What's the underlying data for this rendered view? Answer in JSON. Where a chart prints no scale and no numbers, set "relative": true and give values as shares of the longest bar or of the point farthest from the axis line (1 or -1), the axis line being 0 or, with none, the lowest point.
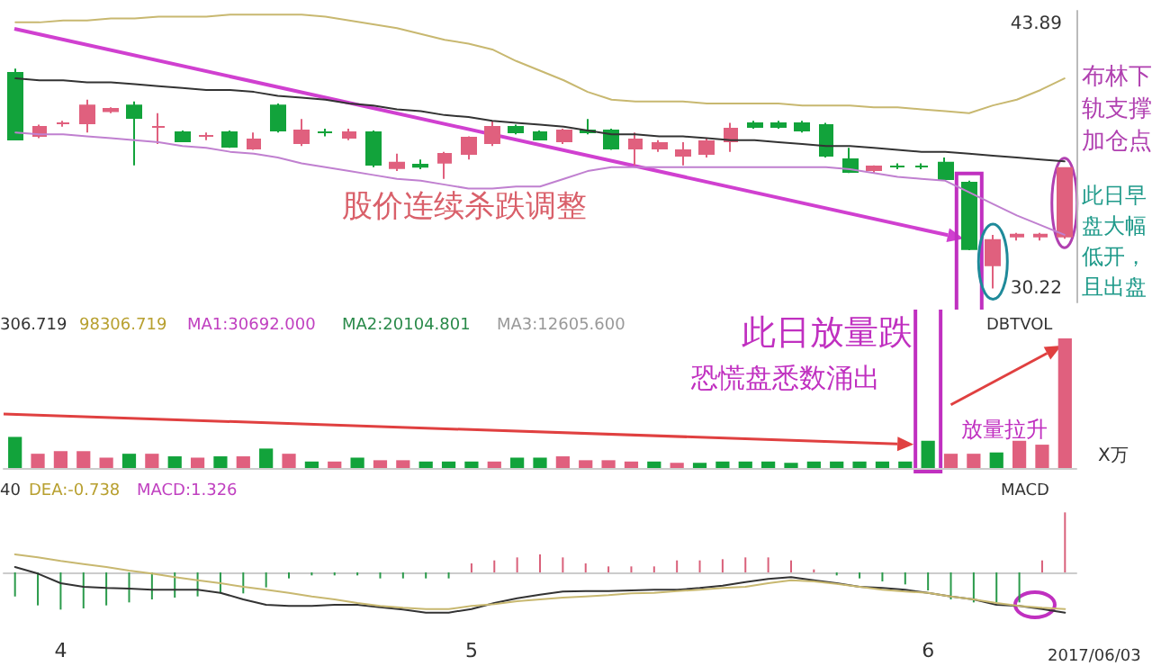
{
  "chart_data": [
    {
      "type": "candlestick",
      "tick_labels": "y",
      "ylim": [
        29.5,
        44.6
      ],
      "yticks": [
        30.22,
        43.89
      ],
      "categories": [
        null,
        null,
        null,
        null,
        null,
        null,
        null,
        null,
        null,
        null,
        null,
        null,
        null,
        null,
        null,
        null,
        null,
        null,
        null,
        null,
        null,
        null,
        null,
        null,
        null,
        null,
        null,
        null,
        null,
        null,
        null,
        null,
        null,
        null,
        null,
        null,
        null,
        null,
        null,
        null,
        null,
        null,
        null,
        null,
        null
      ],
      "ohlc": [
        [
          41.38,
          41.6,
          37.9,
          37.94
        ],
        [
          38.12,
          38.7,
          38.0,
          38.59
        ],
        [
          38.77,
          38.9,
          38.6,
          38.77
        ],
        [
          38.77,
          40.0,
          38.3,
          39.7
        ],
        [
          39.4,
          39.6,
          39.3,
          39.52
        ],
        [
          39.7,
          39.9,
          36.6,
          39.05
        ],
        [
          38.59,
          39.3,
          37.7,
          38.59
        ],
        [
          38.31,
          38.4,
          37.8,
          37.84
        ],
        [
          38.12,
          38.3,
          37.9,
          38.12
        ],
        [
          38.31,
          38.4,
          37.5,
          37.56
        ],
        [
          37.47,
          38.3,
          37.4,
          37.93
        ],
        [
          39.7,
          39.8,
          38.3,
          38.4
        ],
        [
          37.75,
          39.0,
          37.6,
          38.4
        ],
        [
          38.31,
          38.5,
          38.1,
          38.31
        ],
        [
          38.03,
          38.5,
          37.9,
          38.31
        ],
        [
          38.31,
          38.4,
          36.5,
          36.63
        ],
        [
          36.45,
          37.2,
          36.3,
          36.73
        ],
        [
          36.63,
          36.9,
          36.4,
          36.53
        ],
        [
          36.73,
          37.3,
          35.9,
          37.19
        ],
        [
          37.19,
          38.1,
          36.9,
          38.03
        ],
        [
          37.75,
          38.9,
          37.6,
          38.59
        ],
        [
          38.59,
          38.7,
          38.2,
          38.31
        ],
        [
          38.31,
          38.4,
          37.9,
          37.93
        ],
        [
          37.84,
          38.5,
          37.7,
          38.4
        ],
        [
          38.4,
          39.0,
          38.2,
          38.31
        ],
        [
          38.4,
          38.5,
          37.4,
          37.47
        ],
        [
          37.47,
          38.3,
          36.6,
          37.93
        ],
        [
          37.47,
          37.9,
          37.3,
          37.75
        ],
        [
          37.1,
          37.8,
          36.6,
          37.38
        ],
        [
          37.19,
          38.0,
          37.0,
          37.84
        ],
        [
          37.84,
          38.8,
          37.3,
          38.49
        ],
        [
          38.77,
          38.9,
          38.5,
          38.59
        ],
        [
          38.77,
          38.9,
          38.5,
          38.59
        ],
        [
          38.77,
          38.9,
          38.3,
          38.4
        ],
        [
          38.68,
          38.8,
          37.0,
          37.1
        ],
        [
          36.91,
          37.5,
          36.2,
          36.26
        ],
        [
          36.35,
          36.6,
          36.2,
          36.54
        ],
        [
          36.54,
          36.7,
          36.4,
          36.54
        ],
        [
          36.54,
          36.7,
          36.4,
          36.54
        ],
        [
          36.73,
          37.0,
          35.8,
          35.89
        ],
        [
          35.7,
          35.8,
          32.2,
          32.26
        ],
        [
          31.42,
          33.0,
          30.22,
          32.73
        ],
        [
          32.91,
          33.1,
          32.7,
          33.01
        ],
        [
          32.91,
          33.1,
          32.7,
          33.01
        ],
        [
          32.91,
          36.5,
          32.8,
          36.45
        ]
      ],
      "colors": [
        "#12a33b",
        "#e0607e",
        "#e0607e",
        "#e0607e",
        "#e0607e",
        "#12a33b",
        "#e0607e",
        "#12a33b",
        "#e0607e",
        "#12a33b",
        "#e0607e",
        "#12a33b",
        "#e0607e",
        "#12a33b",
        "#e0607e",
        "#12a33b",
        "#e0607e",
        "#12a33b",
        "#e0607e",
        "#e0607e",
        "#e0607e",
        "#12a33b",
        "#12a33b",
        "#e0607e",
        "#12a33b",
        "#12a33b",
        "#e0607e",
        "#e0607e",
        "#e0607e",
        "#e0607e",
        "#e0607e",
        "#12a33b",
        "#12a33b",
        "#12a33b",
        "#12a33b",
        "#12a33b",
        "#e0607e",
        "#12a33b",
        "#12a33b",
        "#12a33b",
        "#12a33b",
        "#e0607e",
        "#e0607e",
        "#e0607e",
        "#e0607e"
      ],
      "series": [
        {
          "type": "line",
          "color": "#333333",
          "values": [
            41.1,
            41.0,
            41.0,
            40.9,
            40.9,
            40.8,
            40.7,
            40.6,
            40.5,
            40.5,
            40.4,
            40.2,
            40.1,
            40.0,
            39.8,
            39.7,
            39.5,
            39.4,
            39.2,
            39.1,
            38.9,
            38.8,
            38.7,
            38.6,
            38.4,
            38.2,
            38.2,
            38.1,
            38.1,
            38.0,
            37.9,
            37.9,
            37.8,
            37.7,
            37.6,
            37.6,
            37.5,
            37.4,
            37.3,
            37.3,
            37.2,
            37.1,
            37.0,
            36.9,
            36.8
          ]
        },
        {
          "type": "line",
          "color": "#c8b870",
          "values": [
            44.0,
            44.0,
            44.1,
            44.1,
            44.2,
            44.2,
            44.3,
            44.3,
            44.3,
            44.4,
            44.4,
            44.4,
            44.4,
            44.3,
            44.1,
            43.9,
            43.7,
            43.4,
            43.1,
            42.9,
            42.6,
            42.0,
            41.5,
            41.0,
            40.4,
            40.0,
            39.9,
            39.9,
            39.9,
            39.8,
            39.8,
            39.8,
            39.8,
            39.7,
            39.7,
            39.7,
            39.6,
            39.6,
            39.5,
            39.4,
            39.3,
            39.7,
            40.0,
            40.5,
            41.1
          ]
        },
        {
          "type": "line",
          "color": "#c080d0",
          "values": [
            38.3,
            38.2,
            38.2,
            38.1,
            38.0,
            37.9,
            37.8,
            37.6,
            37.5,
            37.3,
            37.2,
            37.0,
            36.7,
            36.5,
            36.3,
            36.1,
            35.9,
            35.8,
            35.6,
            35.4,
            35.4,
            35.5,
            35.5,
            35.9,
            36.3,
            36.5,
            36.5,
            36.5,
            36.5,
            36.5,
            36.5,
            36.5,
            36.5,
            36.5,
            36.5,
            36.4,
            36.2,
            36.0,
            35.9,
            35.8,
            35.2,
            34.6,
            34.0,
            33.5,
            33.0
          ]
        }
      ],
      "annotations": [
        "股价连续杀跌调整",
        "此日早盘大幅低开，且出盘",
        "布林下轨支撑加仓点"
      ]
    },
    {
      "type": "bar",
      "relative": true,
      "tick_labels": false,
      "categories": [
        null,
        null,
        null,
        null,
        null,
        null,
        null,
        null,
        null,
        null,
        null,
        null,
        null,
        null,
        null,
        null,
        null,
        null,
        null,
        null,
        null,
        null,
        null,
        null,
        null,
        null,
        null,
        null,
        null,
        null,
        null,
        null,
        null,
        null,
        null,
        null,
        null,
        null,
        null,
        null,
        null,
        null,
        null,
        null,
        null,
        null,
        null
      ],
      "values": [
        0.24,
        0.11,
        0.13,
        0.13,
        0.08,
        0.11,
        0.11,
        0.09,
        0.08,
        0.09,
        0.09,
        0.15,
        0.11,
        0.05,
        0.05,
        0.08,
        0.06,
        0.06,
        0.05,
        0.05,
        0.05,
        0.05,
        0.08,
        0.08,
        0.09,
        0.06,
        0.06,
        0.05,
        0.05,
        0.04,
        0.04,
        0.05,
        0.05,
        0.05,
        0.04,
        0.05,
        0.05,
        0.05,
        0.05,
        0.05,
        0.21,
        0.11,
        0.11,
        0.12,
        0.21,
        0.18,
        1
      ],
      "colors": [
        "#12a33b",
        "#e0607e",
        "#e0607e",
        "#e0607e",
        "#e0607e",
        "#12a33b",
        "#e0607e",
        "#12a33b",
        "#e0607e",
        "#12a33b",
        "#e0607e",
        "#12a33b",
        "#e0607e",
        "#12a33b",
        "#e0607e",
        "#12a33b",
        "#e0607e",
        "#e0607e",
        "#12a33b",
        "#12a33b",
        "#12a33b",
        "#e0607e",
        "#12a33b",
        "#12a33b",
        "#e0607e",
        "#e0607e",
        "#e0607e",
        "#e0607e",
        "#12a33b",
        "#e0607e",
        "#12a33b",
        "#12a33b",
        "#12a33b",
        "#12a33b",
        "#12a33b",
        "#12a33b",
        "#12a33b",
        "#12a33b",
        "#12a33b",
        "#12a33b",
        "#12a33b",
        "#e0607e",
        "#e0607e",
        "#12a33b",
        "#e0607e",
        "#e0607e",
        "#e0607e"
      ],
      "annotations": [
        "306.719",
        "98306.719",
        "MA1:30692.000",
        "MA2:20104.801",
        "MA3:12605.600",
        "DBTVOL",
        "X万",
        "此日放量跌",
        "恐慌盘悉数涌出",
        "放量拉升"
      ]
    },
    {
      "type": "bar",
      "relative": true,
      "tick_labels": "x",
      "categories": [
        null,
        null,
        "4",
        null,
        null,
        null,
        null,
        null,
        null,
        null,
        null,
        null,
        null,
        null,
        null,
        null,
        null,
        null,
        null,
        null,
        "5",
        null,
        null,
        null,
        null,
        null,
        null,
        null,
        null,
        null,
        null,
        null,
        null,
        null,
        null,
        null,
        null,
        null,
        null,
        null,
        "6",
        null,
        null,
        null,
        null,
        null,
        null
      ],
      "series": [
        {
          "values": [
            -0.4,
            -0.55,
            -0.62,
            -0.6,
            -0.55,
            -0.5,
            -0.45,
            -0.42,
            -0.4,
            -0.35,
            -0.35,
            -0.25,
            -0.1,
            -0.05,
            -0.05,
            -0.05,
            -0.1,
            -0.1,
            -0.1,
            -0.1,
            0.15,
            0.2,
            0.25,
            0.3,
            0.25,
            0.15,
            0.1,
            0.1,
            0.1,
            0.2,
            0.2,
            0.22,
            0.25,
            0.25,
            0.2,
            0.05,
            -0.05,
            -0.1,
            -0.15,
            -0.2,
            -0.3,
            -0.45,
            -0.5,
            -0.5,
            -0.5,
            0.2,
            1
          ],
          "colors": [
            "#2a9a4a",
            "#2a9a4a",
            "#2a9a4a",
            "#2a9a4a",
            "#2a9a4a",
            "#2a9a4a",
            "#2a9a4a",
            "#2a9a4a",
            "#2a9a4a",
            "#2a9a4a",
            "#2a9a4a",
            "#2a9a4a",
            "#2a9a4a",
            "#2a9a4a",
            "#2a9a4a",
            "#2a9a4a",
            "#2a9a4a",
            "#2a9a4a",
            "#2a9a4a",
            "#2a9a4a",
            "#d9607a",
            "#d9607a",
            "#d9607a",
            "#d9607a",
            "#d9607a",
            "#d9607a",
            "#d9607a",
            "#d9607a",
            "#d9607a",
            "#d9607a",
            "#d9607a",
            "#d9607a",
            "#d9607a",
            "#d9607a",
            "#d9607a",
            "#d9607a",
            "#2a9a4a",
            "#2a9a4a",
            "#2a9a4a",
            "#2a9a4a",
            "#2a9a4a",
            "#2a9a4a",
            "#2a9a4a",
            "#2a9a4a",
            "#2a9a4a",
            "#d9607a",
            "#d9607a"
          ]
        },
        {
          "type": "line",
          "color": "#333333",
          "values": [
            0.09,
            -0.02,
            -0.18,
            -0.24,
            -0.26,
            -0.27,
            -0.29,
            -0.29,
            -0.29,
            -0.34,
            -0.45,
            -0.54,
            -0.56,
            -0.56,
            -0.54,
            -0.54,
            -0.58,
            -0.62,
            -0.67,
            -0.67,
            -0.61,
            -0.51,
            -0.43,
            -0.37,
            -0.32,
            -0.31,
            -0.31,
            -0.3,
            -0.29,
            -0.29,
            -0.26,
            -0.22,
            -0.16,
            -0.11,
            -0.08,
            -0.13,
            -0.18,
            -0.24,
            -0.26,
            -0.29,
            -0.34,
            -0.4,
            -0.45,
            -0.54,
            -0.56,
            -0.61,
            -0.67
          ]
        },
        {
          "type": "line",
          "color": "#c8b870",
          "values": [
            0.3,
            0.25,
            0.19,
            0.14,
            0.09,
            0.03,
            -0.02,
            -0.08,
            -0.13,
            -0.18,
            -0.24,
            -0.29,
            -0.34,
            -0.4,
            -0.45,
            -0.51,
            -0.56,
            -0.59,
            -0.61,
            -0.61,
            -0.56,
            -0.53,
            -0.48,
            -0.45,
            -0.42,
            -0.4,
            -0.38,
            -0.35,
            -0.34,
            -0.31,
            -0.29,
            -0.26,
            -0.24,
            -0.18,
            -0.13,
            -0.15,
            -0.19,
            -0.24,
            -0.29,
            -0.32,
            -0.34,
            -0.4,
            -0.45,
            -0.51,
            -0.56,
            -0.59,
            -0.61
          ]
        }
      ],
      "annotations": [
        "40",
        "DEA:-0.738",
        "MACD:1.326",
        "MACD",
        "2017/06/03"
      ]
    }
  ]
}
